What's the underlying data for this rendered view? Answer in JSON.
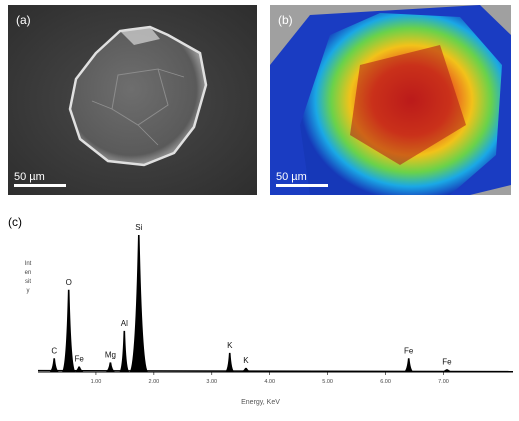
{
  "panels": {
    "a": {
      "label": "(a)",
      "scale": "50 µm"
    },
    "b": {
      "label": "(b)",
      "scale": "50 µm"
    },
    "c": {
      "label": "(c)"
    }
  },
  "chart_data": {
    "type": "line",
    "xlabel": "Energy, KeV",
    "ylabel": "Intensity",
    "xlim": [
      0,
      8.2
    ],
    "ylim": [
      0,
      100
    ],
    "tick_values": [
      1,
      2,
      3,
      4,
      5,
      6,
      7
    ],
    "tick_labels": [
      "1.00",
      "2.00",
      "3.00",
      "4.00",
      "5.00",
      "6.00",
      "7.00"
    ],
    "peaks": [
      {
        "label": "C",
        "energy": 0.28,
        "height": 10
      },
      {
        "label": "O",
        "energy": 0.53,
        "height": 60
      },
      {
        "label": "Fe",
        "energy": 0.71,
        "height": 4
      },
      {
        "label": "Mg",
        "energy": 1.25,
        "height": 7
      },
      {
        "label": "Al",
        "energy": 1.49,
        "height": 30
      },
      {
        "label": "Si",
        "energy": 1.74,
        "height": 100
      },
      {
        "label": "K",
        "energy": 3.31,
        "height": 14
      },
      {
        "label": "K",
        "energy": 3.59,
        "height": 3
      },
      {
        "label": "Fe",
        "energy": 6.4,
        "height": 10
      },
      {
        "label": "Fe",
        "energy": 7.06,
        "height": 2
      }
    ]
  }
}
